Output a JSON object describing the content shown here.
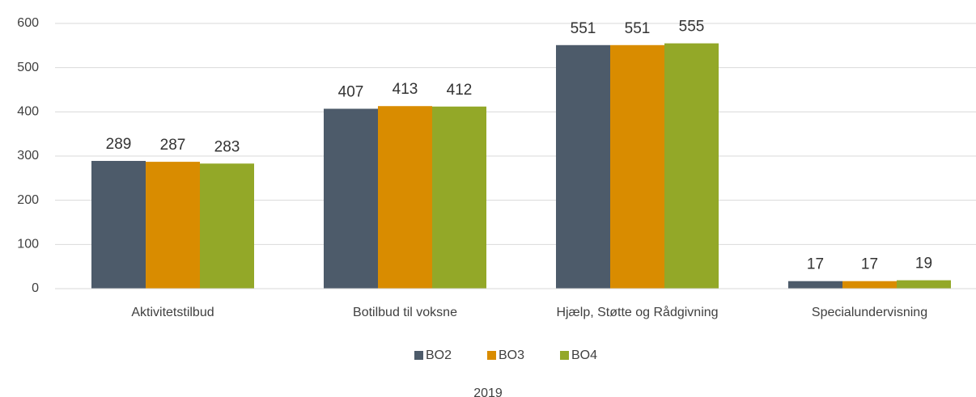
{
  "chart_data": {
    "type": "bar",
    "x_label": "2019",
    "categories": [
      "Aktivitetstilbud",
      "Botilbud til voksne",
      "Hjælp, Støtte og Rådgivning",
      "Specialundervisning"
    ],
    "series": [
      {
        "name": "BO2",
        "color": "#4d5b6a",
        "values": [
          289,
          407,
          551,
          17
        ]
      },
      {
        "name": "BO3",
        "color": "#d98c00",
        "values": [
          287,
          413,
          551,
          17
        ]
      },
      {
        "name": "BO4",
        "color": "#93a828",
        "values": [
          283,
          412,
          555,
          19
        ]
      }
    ],
    "ylim": [
      0,
      600
    ],
    "yticks": [
      0,
      100,
      200,
      300,
      400,
      500,
      600
    ],
    "grid": true,
    "legend": "bottom"
  }
}
